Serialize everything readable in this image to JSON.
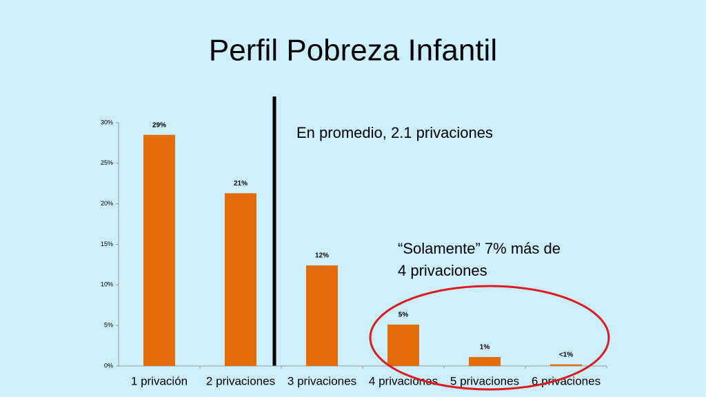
{
  "chart_data": {
    "type": "bar",
    "title": "Perfil Pobreza Infantil",
    "categories": [
      "1 privación",
      "2 privaciones",
      "3 privaciones",
      "4 privaciones",
      "5 privaciones",
      "6 privaciones"
    ],
    "values": [
      28.5,
      21.3,
      12.4,
      5.1,
      1.1,
      0.2
    ],
    "value_labels": [
      "29%",
      "21%",
      "12%",
      "5%",
      "1%",
      "<1%"
    ],
    "color": "#e36c0a",
    "ylim": [
      0,
      30
    ],
    "yticks": [
      {
        "value": 0,
        "label": "0%"
      },
      {
        "value": 5,
        "label": "5%"
      },
      {
        "value": 10,
        "label": "10%"
      },
      {
        "value": 15,
        "label": "15%"
      },
      {
        "value": 20,
        "label": "20%"
      },
      {
        "value": 25,
        "label": "25%"
      },
      {
        "value": 30,
        "label": "30%"
      }
    ],
    "annotations": [
      "En promedio, 2.1 privaciones",
      "“Solamente” 7% más de",
      "4 privaciones"
    ]
  }
}
